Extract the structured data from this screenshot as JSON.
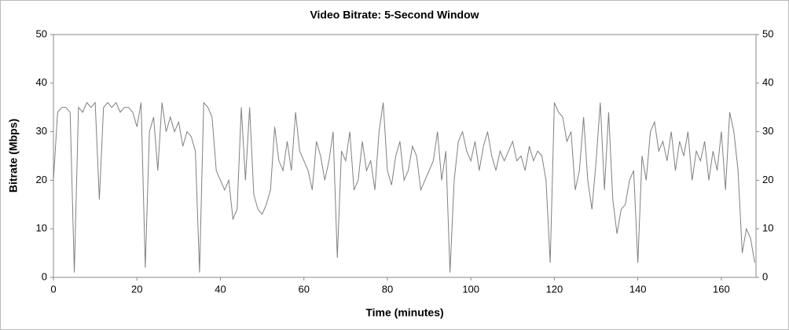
{
  "chart_data": {
    "type": "line",
    "title": "Video Bitrate: 5-Second Window",
    "xlabel": "Time (minutes)",
    "ylabel": "Bitrate (Mbps)",
    "x": [
      0,
      1,
      2,
      3,
      4,
      5,
      6,
      7,
      8,
      9,
      10,
      11,
      12,
      13,
      14,
      15,
      16,
      17,
      18,
      19,
      20,
      21,
      22,
      23,
      24,
      25,
      26,
      27,
      28,
      29,
      30,
      31,
      32,
      33,
      34,
      35,
      36,
      37,
      38,
      39,
      40,
      41,
      42,
      43,
      44,
      45,
      46,
      47,
      48,
      49,
      50,
      51,
      52,
      53,
      54,
      55,
      56,
      57,
      58,
      59,
      60,
      61,
      62,
      63,
      64,
      65,
      66,
      67,
      68,
      69,
      70,
      71,
      72,
      73,
      74,
      75,
      76,
      77,
      78,
      79,
      80,
      81,
      82,
      83,
      84,
      85,
      86,
      87,
      88,
      89,
      90,
      91,
      92,
      93,
      94,
      95,
      96,
      97,
      98,
      99,
      100,
      101,
      102,
      103,
      104,
      105,
      106,
      107,
      108,
      109,
      110,
      111,
      112,
      113,
      114,
      115,
      116,
      117,
      118,
      119,
      120,
      121,
      122,
      123,
      124,
      125,
      126,
      127,
      128,
      129,
      130,
      131,
      132,
      133,
      134,
      135,
      136,
      137,
      138,
      139,
      140,
      141,
      142,
      143,
      144,
      145,
      146,
      147,
      148,
      149,
      150,
      151,
      152,
      153,
      154,
      155,
      156,
      157,
      158,
      159,
      160,
      161,
      162,
      163,
      164,
      165,
      166,
      167,
      168
    ],
    "series": [
      {
        "name": "Bitrate",
        "color": "#808080",
        "values": [
          20,
          34,
          35,
          35,
          34,
          1,
          35,
          34,
          36,
          35,
          36,
          16,
          35,
          36,
          35,
          36,
          34,
          35,
          35,
          34,
          31,
          36,
          2,
          30,
          33,
          22,
          36,
          30,
          33,
          30,
          32,
          27,
          30,
          29,
          26,
          1,
          36,
          35,
          33,
          22,
          20,
          18,
          20,
          12,
          14,
          35,
          20,
          35,
          17,
          14,
          13,
          15,
          18,
          31,
          24,
          22,
          28,
          22,
          34,
          26,
          24,
          22,
          18,
          28,
          25,
          20,
          24,
          30,
          4,
          26,
          24,
          30,
          18,
          20,
          28,
          22,
          24,
          18,
          30,
          36,
          22,
          19,
          25,
          28,
          20,
          22,
          27,
          25,
          18,
          20,
          22,
          24,
          30,
          20,
          26,
          1,
          20,
          28,
          30,
          26,
          24,
          28,
          22,
          27,
          30,
          25,
          22,
          26,
          24,
          26,
          28,
          24,
          25,
          22,
          27,
          24,
          26,
          25,
          20,
          3,
          36,
          34,
          33,
          28,
          30,
          18,
          22,
          33,
          20,
          14,
          24,
          36,
          18,
          34,
          16,
          9,
          14,
          15,
          20,
          22,
          3,
          25,
          20,
          30,
          32,
          26,
          28,
          24,
          30,
          22,
          28,
          25,
          30,
          20,
          26,
          24,
          28,
          20,
          26,
          22,
          30,
          18,
          34,
          30,
          22,
          5,
          10,
          8,
          3
        ]
      }
    ],
    "xlim": [
      0,
      168.3
    ],
    "xticks": [
      0,
      20,
      40,
      60,
      80,
      100,
      120,
      140,
      160
    ],
    "ylim": [
      0,
      50
    ],
    "yticks": [
      0,
      10,
      20,
      30,
      40,
      50
    ],
    "y2lim": [
      0,
      50
    ],
    "y2ticks": [
      0,
      10,
      20,
      30,
      40,
      50
    ]
  }
}
